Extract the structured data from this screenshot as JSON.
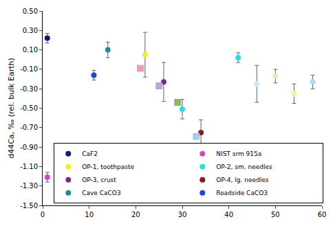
{
  "chart_data": {
    "type": "scatter",
    "y_label": "d44Ca, ‰ (rel. bulk Earth)",
    "xlim": [
      0,
      60
    ],
    "xticks": [
      0,
      10,
      20,
      30,
      40,
      50,
      60
    ],
    "ylim": [
      -1.5,
      0.5
    ],
    "yticks": [
      {
        "value": 0.5,
        "label": "0.50"
      },
      {
        "value": 0.3,
        "label": "0.30"
      },
      {
        "value": 0.1,
        "label": "0.10"
      },
      {
        "value": -0.1,
        "label": "-0.10"
      },
      {
        "value": -0.3,
        "label": "-0.30"
      },
      {
        "value": -0.5,
        "label": "-0.50"
      },
      {
        "value": -0.7,
        "label": "-0.70"
      },
      {
        "value": -0.9,
        "label": "-0.90"
      },
      {
        "value": -1.1,
        "label": "-1.10"
      },
      {
        "value": -1.3,
        "label": "-1.30"
      },
      {
        "value": -1.5,
        "label": "-1.50"
      }
    ],
    "grid": false,
    "legend": "lower left",
    "series": [
      {
        "name": "CaF2",
        "color": "#0b1f6e",
        "marker": "circle",
        "x": [
          1
        ],
        "values": [
          0.22
        ],
        "error": [
          0.05
        ]
      },
      {
        "name": "NIST srm 915a",
        "color": "#e040c8",
        "marker": "circle",
        "x": [
          1
        ],
        "values": [
          -1.21
        ],
        "error": [
          0.05
        ]
      },
      {
        "name": "OP-1, toothpaste",
        "color": "#f0f020",
        "marker": "circle",
        "x": [
          22
        ],
        "values": [
          0.05
        ],
        "error": [
          0.23
        ]
      },
      {
        "name": "OP-2, sm. needles",
        "color": "#20e0f0",
        "marker": "circle",
        "x": [
          30,
          42
        ],
        "values": [
          -0.51,
          0.02
        ],
        "error": [
          0.1,
          0.05
        ]
      },
      {
        "name": "OP-3, crust",
        "color": "#7a2a8a",
        "marker": "circle",
        "x": [
          26
        ],
        "values": [
          -0.23
        ],
        "error": [
          0.2
        ]
      },
      {
        "name": "OP-4, lg. needles",
        "color": "#8b1a10",
        "marker": "circle",
        "x": [
          34
        ],
        "values": [
          -0.75
        ],
        "error": [
          0.13
        ]
      },
      {
        "name": "Cave CaCO3",
        "color": "#1a9090",
        "marker": "circle",
        "x": [
          14
        ],
        "values": [
          0.1
        ],
        "error": [
          0.08
        ]
      },
      {
        "name": "Roadside CaCO3",
        "color": "#1a4ad8",
        "marker": "circle",
        "x": [
          11
        ],
        "values": [
          -0.16
        ],
        "error": [
          0.05
        ]
      },
      {
        "color": "#e8a0a8",
        "marker": "square",
        "x": [
          21
        ],
        "values": [
          -0.09
        ]
      },
      {
        "color": "#b8a8d8",
        "marker": "square",
        "x": [
          25
        ],
        "values": [
          -0.27
        ]
      },
      {
        "color": "#8cb860",
        "marker": "square",
        "x": [
          29
        ],
        "values": [
          -0.44
        ]
      },
      {
        "color": "#a8c8e8",
        "marker": "square",
        "x": [
          33
        ],
        "values": [
          -0.79
        ]
      },
      {
        "color": "#c8eaf8",
        "marker": "circle",
        "x": [
          46
        ],
        "values": [
          -0.25
        ],
        "error": [
          0.19
        ]
      },
      {
        "color": "#d8f0c8",
        "marker": "circle",
        "x": [
          50
        ],
        "values": [
          -0.17
        ],
        "error": [
          0.07
        ]
      },
      {
        "color": "#f8f0a0",
        "marker": "circle",
        "x": [
          54
        ],
        "values": [
          -0.35
        ],
        "error": [
          0.1
        ]
      },
      {
        "color": "#b0d8f0",
        "marker": "circle",
        "x": [
          58
        ],
        "values": [
          -0.23
        ],
        "error": [
          0.07
        ]
      }
    ]
  }
}
